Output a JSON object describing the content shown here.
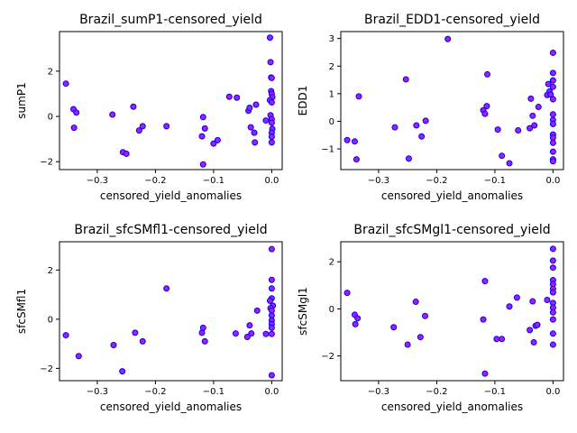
{
  "style": {
    "marker_face": "#a020f0",
    "marker_edge": "#0000ff"
  },
  "chart_data": [
    {
      "type": "scatter",
      "title": "Brazil_sumP1-censored_yield",
      "xlabel": "censored_yield_anomalies",
      "ylabel": "sumP1",
      "xlim": [
        -0.365,
        0.018
      ],
      "ylim": [
        -2.35,
        3.75
      ],
      "xticks": [
        {
          "v": -0.3,
          "label": "−0.3"
        },
        {
          "v": -0.2,
          "label": "−0.2"
        },
        {
          "v": -0.1,
          "label": "−0.1"
        },
        {
          "v": 0.0,
          "label": "0.0"
        }
      ],
      "yticks": [
        {
          "v": -2,
          "label": "−2"
        },
        {
          "v": 0,
          "label": "0"
        },
        {
          "v": 2,
          "label": "2"
        }
      ],
      "points": [
        [
          -0.354,
          1.45
        ],
        [
          -0.341,
          0.32
        ],
        [
          -0.34,
          -0.5
        ],
        [
          -0.336,
          0.17
        ],
        [
          -0.274,
          0.08
        ],
        [
          -0.256,
          -1.58
        ],
        [
          -0.25,
          -1.65
        ],
        [
          -0.238,
          0.43
        ],
        [
          -0.228,
          -0.62
        ],
        [
          -0.222,
          -0.43
        ],
        [
          -0.181,
          -0.43
        ],
        [
          -0.12,
          -0.88
        ],
        [
          -0.118,
          -0.03
        ],
        [
          -0.118,
          -2.12
        ],
        [
          -0.115,
          -0.53
        ],
        [
          -0.1,
          -1.2
        ],
        [
          -0.093,
          -1.05
        ],
        [
          -0.073,
          0.87
        ],
        [
          -0.06,
          0.83
        ],
        [
          -0.04,
          0.25
        ],
        [
          -0.038,
          0.38
        ],
        [
          -0.036,
          -0.48
        ],
        [
          -0.03,
          -0.72
        ],
        [
          -0.029,
          -1.15
        ],
        [
          -0.027,
          0.52
        ],
        [
          -0.01,
          -0.18
        ],
        [
          -0.003,
          3.48
        ],
        [
          -0.002,
          2.4
        ],
        [
          -0.001,
          1.72
        ],
        [
          0.0,
          1.7
        ],
        [
          -0.001,
          1.12
        ],
        [
          0.0,
          1.0
        ],
        [
          0.001,
          0.85
        ],
        [
          -0.003,
          0.72
        ],
        [
          0.0,
          0.62
        ],
        [
          -0.002,
          0.05
        ],
        [
          0.0,
          -0.12
        ],
        [
          0.0,
          -0.28
        ],
        [
          0.001,
          -0.55
        ],
        [
          0.0,
          -0.72
        ],
        [
          0.0,
          -0.9
        ],
        [
          0.0,
          -1.15
        ]
      ]
    },
    {
      "type": "scatter",
      "title": "Brazil_EDD1-censored_yield",
      "xlabel": "censored_yield_anomalies",
      "ylabel": "EDD1",
      "xlim": [
        -0.365,
        0.018
      ],
      "ylim": [
        -1.75,
        3.25
      ],
      "xticks": [
        {
          "v": -0.3,
          "label": "−0.3"
        },
        {
          "v": -0.2,
          "label": "−0.2"
        },
        {
          "v": -0.1,
          "label": "−0.1"
        },
        {
          "v": 0.0,
          "label": "0.0"
        }
      ],
      "yticks": [
        {
          "v": -1,
          "label": "−1"
        },
        {
          "v": 0,
          "label": "0"
        },
        {
          "v": 1,
          "label": "1"
        },
        {
          "v": 2,
          "label": "2"
        },
        {
          "v": 3,
          "label": "3"
        }
      ],
      "points": [
        [
          -0.354,
          -0.68
        ],
        [
          -0.341,
          -0.73
        ],
        [
          -0.338,
          -1.38
        ],
        [
          -0.334,
          0.9
        ],
        [
          -0.272,
          -0.22
        ],
        [
          -0.253,
          1.52
        ],
        [
          -0.248,
          -1.35
        ],
        [
          -0.235,
          -0.15
        ],
        [
          -0.226,
          -0.55
        ],
        [
          -0.219,
          0.02
        ],
        [
          -0.181,
          2.98
        ],
        [
          -0.12,
          0.4
        ],
        [
          -0.117,
          0.27
        ],
        [
          -0.114,
          0.55
        ],
        [
          -0.113,
          1.7
        ],
        [
          -0.095,
          -0.3
        ],
        [
          -0.088,
          -1.25
        ],
        [
          -0.075,
          -1.52
        ],
        [
          -0.06,
          -0.33
        ],
        [
          -0.04,
          -0.25
        ],
        [
          -0.038,
          0.82
        ],
        [
          -0.035,
          0.2
        ],
        [
          -0.032,
          -0.15
        ],
        [
          -0.025,
          0.52
        ],
        [
          -0.01,
          0.95
        ],
        [
          -0.008,
          1.35
        ],
        [
          -0.006,
          1.08
        ],
        [
          -0.004,
          0.97
        ],
        [
          0.0,
          2.48
        ],
        [
          0.0,
          1.75
        ],
        [
          0.0,
          1.48
        ],
        [
          0.0,
          1.25
        ],
        [
          0.0,
          0.8
        ],
        [
          0.0,
          0.25
        ],
        [
          0.0,
          0.05
        ],
        [
          0.0,
          -0.1
        ],
        [
          0.0,
          -0.48
        ],
        [
          0.0,
          -0.6
        ],
        [
          0.0,
          -0.78
        ],
        [
          0.0,
          -1.1
        ],
        [
          0.0,
          -1.38
        ],
        [
          0.0,
          -1.45
        ]
      ]
    },
    {
      "type": "scatter",
      "title": "Brazil_sfcSMfl1-censored_yield",
      "xlabel": "censored_yield_anomalies",
      "ylabel": "sfcSMfl1",
      "xlim": [
        -0.365,
        0.018
      ],
      "ylim": [
        -2.5,
        3.15
      ],
      "xticks": [
        {
          "v": -0.3,
          "label": "−0.3"
        },
        {
          "v": -0.2,
          "label": "−0.2"
        },
        {
          "v": -0.1,
          "label": "−0.1"
        },
        {
          "v": 0.0,
          "label": "0.0"
        }
      ],
      "yticks": [
        {
          "v": -2,
          "label": "−2"
        },
        {
          "v": 0,
          "label": "0"
        },
        {
          "v": 2,
          "label": "2"
        }
      ],
      "points": [
        [
          -0.354,
          -0.65
        ],
        [
          -0.332,
          -1.5
        ],
        [
          -0.272,
          -1.05
        ],
        [
          -0.257,
          -2.12
        ],
        [
          -0.235,
          -0.55
        ],
        [
          -0.222,
          -0.9
        ],
        [
          -0.181,
          1.25
        ],
        [
          -0.12,
          -0.55
        ],
        [
          -0.118,
          -0.35
        ],
        [
          -0.115,
          -0.9
        ],
        [
          -0.062,
          -0.58
        ],
        [
          -0.042,
          -0.72
        ],
        [
          -0.038,
          -0.25
        ],
        [
          -0.035,
          -0.58
        ],
        [
          -0.025,
          0.35
        ],
        [
          -0.01,
          -0.6
        ],
        [
          0.0,
          2.85
        ],
        [
          0.0,
          1.6
        ],
        [
          0.0,
          1.25
        ],
        [
          0.0,
          0.85
        ],
        [
          -0.003,
          0.75
        ],
        [
          0.002,
          0.55
        ],
        [
          -0.002,
          0.45
        ],
        [
          0.0,
          0.35
        ],
        [
          0.0,
          0.15
        ],
        [
          0.0,
          -0.05
        ],
        [
          0.0,
          -0.2
        ],
        [
          0.0,
          -0.35
        ],
        [
          0.0,
          -0.6
        ],
        [
          0.0,
          -2.28
        ]
      ]
    },
    {
      "type": "scatter",
      "title": "Brazil_sfcSMgl1-censored_yield",
      "xlabel": "censored_yield_anomalies",
      "ylabel": "sfcSMgl1",
      "xlim": [
        -0.365,
        0.018
      ],
      "ylim": [
        -3.05,
        2.85
      ],
      "xticks": [
        {
          "v": -0.3,
          "label": "−0.3"
        },
        {
          "v": -0.2,
          "label": "−0.2"
        },
        {
          "v": -0.1,
          "label": "−0.1"
        },
        {
          "v": 0.0,
          "label": "0.0"
        }
      ],
      "yticks": [
        {
          "v": -2,
          "label": "−2"
        },
        {
          "v": 0,
          "label": "0"
        },
        {
          "v": 2,
          "label": "2"
        }
      ],
      "points": [
        [
          -0.354,
          0.68
        ],
        [
          -0.341,
          -0.25
        ],
        [
          -0.34,
          -0.65
        ],
        [
          -0.336,
          -0.4
        ],
        [
          -0.274,
          -0.78
        ],
        [
          -0.25,
          -1.52
        ],
        [
          -0.236,
          0.3
        ],
        [
          -0.228,
          -1.2
        ],
        [
          -0.22,
          -0.3
        ],
        [
          -0.12,
          -0.45
        ],
        [
          -0.117,
          1.18
        ],
        [
          -0.117,
          -2.75
        ],
        [
          -0.097,
          -1.28
        ],
        [
          -0.088,
          -1.28
        ],
        [
          -0.075,
          0.1
        ],
        [
          -0.062,
          0.48
        ],
        [
          -0.04,
          -0.9
        ],
        [
          -0.035,
          0.32
        ],
        [
          -0.033,
          -1.42
        ],
        [
          -0.03,
          -0.72
        ],
        [
          -0.027,
          -0.68
        ],
        [
          -0.01,
          0.38
        ],
        [
          0.0,
          2.55
        ],
        [
          0.0,
          2.05
        ],
        [
          0.0,
          1.75
        ],
        [
          0.0,
          1.22
        ],
        [
          0.0,
          1.05
        ],
        [
          0.0,
          0.85
        ],
        [
          0.0,
          0.7
        ],
        [
          0.0,
          0.25
        ],
        [
          0.0,
          0.05
        ],
        [
          0.0,
          -0.15
        ],
        [
          0.0,
          -0.45
        ],
        [
          0.0,
          -1.05
        ],
        [
          0.0,
          -1.52
        ]
      ]
    }
  ]
}
